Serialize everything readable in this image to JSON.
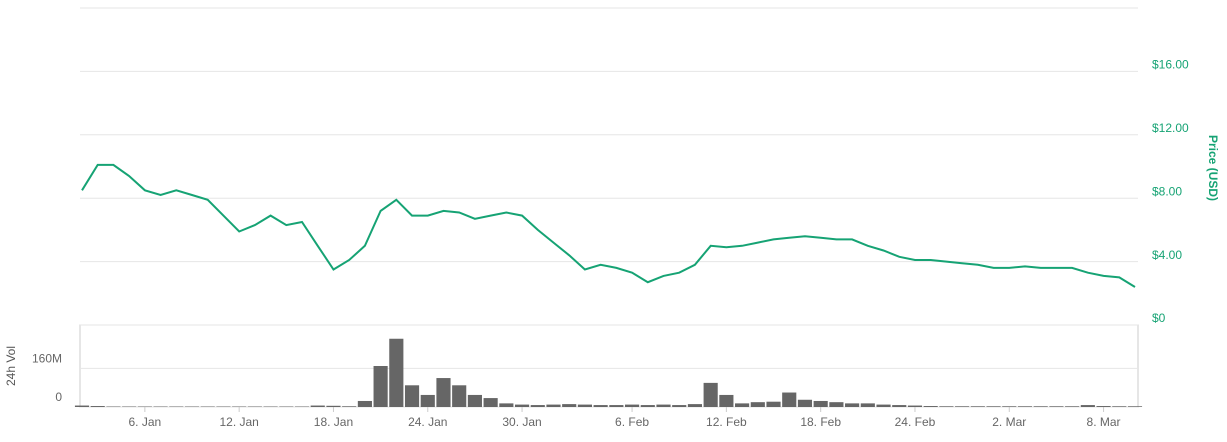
{
  "chart_data": [
    {
      "type": "line",
      "ylabel": "Price (USD)",
      "color": "#16a374",
      "categories": [
        "2. Jan",
        "3. Jan",
        "4. Jan",
        "5. Jan",
        "6. Jan",
        "7. Jan",
        "8. Jan",
        "9. Jan",
        "10. Jan",
        "11. Jan",
        "12. Jan",
        "13. Jan",
        "14. Jan",
        "15. Jan",
        "16. Jan",
        "17. Jan",
        "18. Jan",
        "19. Jan",
        "20. Jan",
        "21. Jan",
        "22. Jan",
        "23. Jan",
        "24. Jan",
        "25. Jan",
        "26. Jan",
        "27. Jan",
        "28. Jan",
        "29. Jan",
        "30. Jan",
        "31. Jan",
        "1. Feb",
        "2. Feb",
        "3. Feb",
        "4. Feb",
        "5. Feb",
        "6. Feb",
        "7. Feb",
        "8. Feb",
        "9. Feb",
        "10. Feb",
        "11. Feb",
        "12. Feb",
        "13. Feb",
        "14. Feb",
        "15. Feb",
        "16. Feb",
        "17. Feb",
        "18. Feb",
        "19. Feb",
        "20. Feb",
        "21. Feb",
        "22. Feb",
        "23. Feb",
        "24. Feb",
        "25. Feb",
        "26. Feb",
        "27. Feb",
        "28. Feb",
        "1. Mar",
        "2. Mar",
        "3. Mar",
        "4. Mar",
        "5. Mar",
        "6. Mar",
        "7. Mar",
        "8. Mar",
        "9. Mar",
        "10. Mar"
      ],
      "values": [
        8.5,
        10.1,
        10.1,
        9.4,
        8.5,
        8.2,
        8.5,
        8.2,
        7.9,
        6.9,
        5.9,
        6.3,
        6.9,
        6.3,
        6.5,
        5.0,
        3.5,
        4.1,
        5.0,
        7.2,
        7.9,
        6.9,
        6.9,
        7.2,
        7.1,
        6.7,
        6.9,
        7.1,
        6.9,
        6.0,
        5.2,
        4.4,
        3.5,
        3.8,
        3.6,
        3.3,
        2.7,
        3.1,
        3.3,
        3.8,
        5.0,
        4.9,
        5.0,
        5.2,
        5.4,
        5.5,
        5.6,
        5.5,
        5.4,
        5.4,
        5.0,
        4.7,
        4.3,
        4.1,
        4.1,
        4.0,
        3.9,
        3.8,
        3.6,
        3.6,
        3.7,
        3.6,
        3.6,
        3.6,
        3.3,
        3.1,
        3.0,
        2.4
      ],
      "ylim": [
        0,
        20
      ],
      "yticks": [
        {
          "value": 0,
          "label": "$0"
        },
        {
          "value": 4,
          "label": "$4.00"
        },
        {
          "value": 8,
          "label": "$8.00"
        },
        {
          "value": 12,
          "label": "$12.00"
        },
        {
          "value": 16,
          "label": "$16.00"
        }
      ],
      "grid": true
    },
    {
      "type": "bar",
      "ylabel": "24h Vol",
      "color": "#666666",
      "categories": [
        "2. Jan",
        "3. Jan",
        "4. Jan",
        "5. Jan",
        "6. Jan",
        "7. Jan",
        "8. Jan",
        "9. Jan",
        "10. Jan",
        "11. Jan",
        "12. Jan",
        "13. Jan",
        "14. Jan",
        "15. Jan",
        "16. Jan",
        "17. Jan",
        "18. Jan",
        "19. Jan",
        "20. Jan",
        "21. Jan",
        "22. Jan",
        "23. Jan",
        "24. Jan",
        "25. Jan",
        "26. Jan",
        "27. Jan",
        "28. Jan",
        "29. Jan",
        "30. Jan",
        "31. Jan",
        "1. Feb",
        "2. Feb",
        "3. Feb",
        "4. Feb",
        "5. Feb",
        "6. Feb",
        "7. Feb",
        "8. Feb",
        "9. Feb",
        "10. Feb",
        "11. Feb",
        "12. Feb",
        "13. Feb",
        "14. Feb",
        "15. Feb",
        "16. Feb",
        "17. Feb",
        "18. Feb",
        "19. Feb",
        "20. Feb",
        "21. Feb",
        "22. Feb",
        "23. Feb",
        "24. Feb",
        "25. Feb",
        "26. Feb",
        "27. Feb",
        "28. Feb",
        "1. Mar",
        "2. Mar",
        "3. Mar",
        "4. Mar",
        "5. Mar",
        "6. Mar",
        "7. Mar",
        "8. Mar",
        "9. Mar",
        "10. Mar"
      ],
      "xticks": [
        "6. Jan",
        "12. Jan",
        "18. Jan",
        "24. Jan",
        "30. Jan",
        "6. Feb",
        "12. Feb",
        "18. Feb",
        "24. Feb",
        "2. Mar",
        "8. Mar"
      ],
      "values": [
        6000000,
        4000000,
        2000000,
        2000000,
        2000000,
        2000000,
        2000000,
        2000000,
        2000000,
        2000000,
        2000000,
        2000000,
        2000000,
        2000000,
        2000000,
        6000000,
        5000000,
        3000000,
        25000000,
        170000000,
        283000000,
        90000000,
        50000000,
        120000000,
        90000000,
        50000000,
        37000000,
        15000000,
        10000000,
        8000000,
        10000000,
        12000000,
        10000000,
        8000000,
        8000000,
        10000000,
        8000000,
        10000000,
        8000000,
        12000000,
        100000000,
        50000000,
        15000000,
        20000000,
        22000000,
        60000000,
        30000000,
        25000000,
        20000000,
        15000000,
        15000000,
        10000000,
        8000000,
        6000000,
        4000000,
        3000000,
        3000000,
        3000000,
        3000000,
        3000000,
        3000000,
        3000000,
        3000000,
        3000000,
        8000000,
        4000000,
        3000000,
        3000000
      ],
      "ylim": [
        0,
        340000000
      ],
      "yticks": [
        {
          "value": 0,
          "label": "0"
        },
        {
          "value": 160000000,
          "label": "160M"
        }
      ],
      "grid": true
    }
  ]
}
